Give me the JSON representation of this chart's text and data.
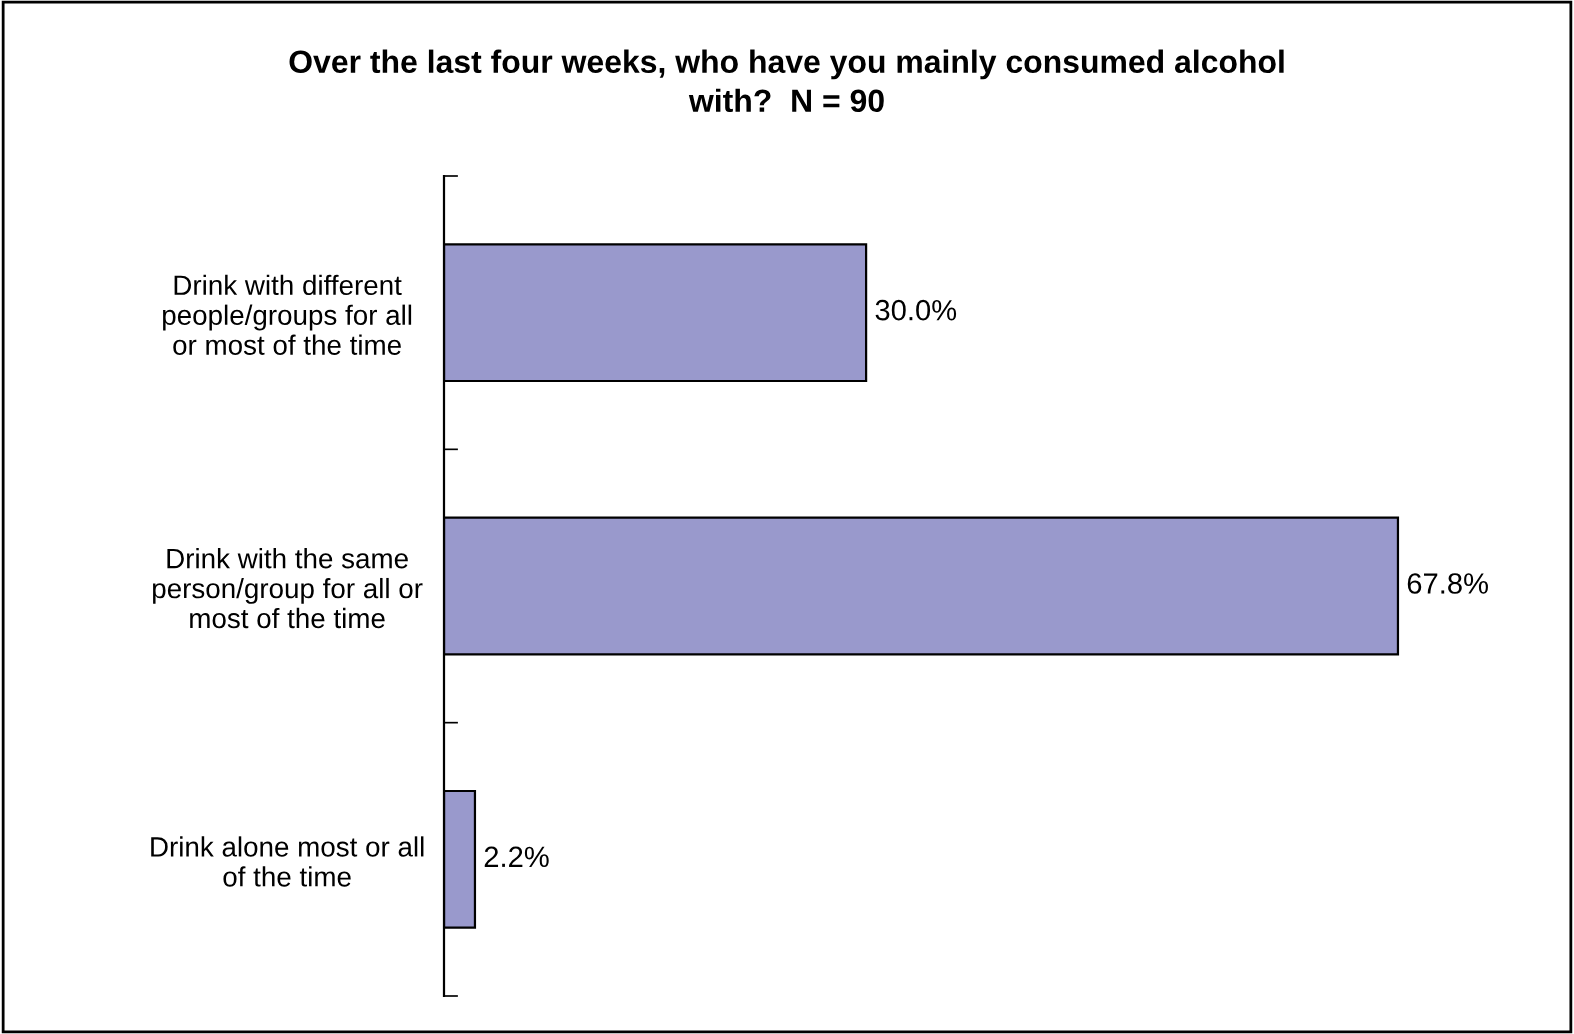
{
  "chart_data": {
    "type": "bar",
    "orientation": "horizontal",
    "title": "Over the last four weeks, who have you mainly consumed alcohol\nwith?  N = 90",
    "categories": [
      "Drink with different\npeople/groups for all\nor most of the time",
      "Drink with the same\nperson/group for all or\nmost of the time",
      "Drink alone most or all\nof the time"
    ],
    "values": [
      30.0,
      67.8,
      2.2
    ],
    "value_labels": [
      "30.0%",
      "67.8%",
      "2.2%"
    ],
    "color": "#9999cc",
    "grid": false,
    "legend": false
  }
}
